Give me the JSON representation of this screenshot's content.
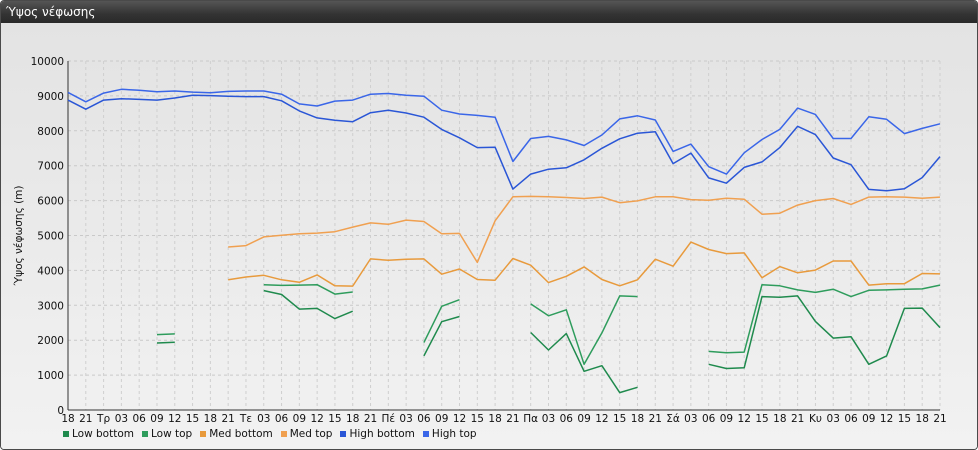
{
  "window": {
    "title": "Ύψος νέφωσης"
  },
  "chart_data": {
    "type": "line",
    "title": "",
    "xlabel": "",
    "ylabel": "Ύψος νέφωσης (m)",
    "ylim": [
      0,
      10000
    ],
    "yticks": [
      0,
      1000,
      2000,
      3000,
      4000,
      5000,
      6000,
      7000,
      8000,
      9000,
      10000
    ],
    "grid": true,
    "legend_position": "bottom-left",
    "categories": [
      "18",
      "21",
      "Τρ",
      "03",
      "06",
      "09",
      "12",
      "15",
      "18",
      "21",
      "Τε",
      "03",
      "06",
      "09",
      "12",
      "15",
      "18",
      "21",
      "Πέ",
      "03",
      "06",
      "09",
      "12",
      "15",
      "18",
      "21",
      "Πα",
      "03",
      "06",
      "09",
      "12",
      "15",
      "18",
      "21",
      "Σά",
      "03",
      "06",
      "09",
      "12",
      "15",
      "18",
      "21",
      "Κυ",
      "03",
      "06",
      "09",
      "12",
      "15",
      "18",
      "21"
    ],
    "series": [
      {
        "name": "Low bottom",
        "color": "#1f8a4d",
        "values": [
          null,
          null,
          null,
          null,
          null,
          1920,
          1940,
          null,
          null,
          null,
          null,
          3420,
          3310,
          2890,
          2910,
          2620,
          2830,
          null,
          null,
          null,
          1550,
          2530,
          2680,
          null,
          null,
          null,
          2220,
          1720,
          2190,
          1110,
          1270,
          500,
          650,
          null,
          null,
          null,
          1310,
          1190,
          1210,
          3250,
          3230,
          3270,
          2540,
          2060,
          2100,
          1310,
          1550,
          2910,
          2920,
          2360
        ]
      },
      {
        "name": "Low top",
        "color": "#2e9c5c",
        "values": [
          null,
          null,
          null,
          null,
          null,
          2160,
          2180,
          null,
          null,
          null,
          null,
          3590,
          3570,
          3580,
          3590,
          3320,
          3380,
          null,
          null,
          null,
          1930,
          2970,
          3160,
          null,
          null,
          null,
          3040,
          2700,
          2870,
          1310,
          2210,
          3270,
          3250,
          null,
          null,
          null,
          1680,
          1640,
          1660,
          3590,
          3560,
          3440,
          3370,
          3460,
          3250,
          3430,
          3440,
          3460,
          3470,
          3580
        ]
      },
      {
        "name": "Med bottom",
        "color": "#e89a3c",
        "values": [
          null,
          null,
          null,
          null,
          null,
          null,
          null,
          null,
          null,
          3730,
          3810,
          3860,
          3730,
          3660,
          3870,
          3560,
          3550,
          4330,
          4290,
          4320,
          4330,
          3890,
          4040,
          3740,
          3720,
          4340,
          4150,
          3650,
          3830,
          4100,
          3740,
          3560,
          3730,
          4320,
          4120,
          4810,
          4600,
          4480,
          4500,
          3790,
          4110,
          3930,
          4010,
          4270,
          4270,
          3580,
          3620,
          3620,
          3910,
          3900
        ]
      },
      {
        "name": "Med top",
        "color": "#f0a050",
        "values": [
          null,
          null,
          null,
          null,
          null,
          null,
          null,
          null,
          null,
          4670,
          4710,
          4960,
          5010,
          5050,
          5070,
          5110,
          5240,
          5360,
          5320,
          5440,
          5400,
          5050,
          5060,
          4230,
          5420,
          6110,
          6120,
          6110,
          6090,
          6060,
          6100,
          5940,
          5990,
          6110,
          6110,
          6030,
          6010,
          6070,
          6040,
          5610,
          5640,
          5870,
          6000,
          6060,
          5890,
          6100,
          6110,
          6100,
          6070,
          6100
        ]
      },
      {
        "name": "High bottom",
        "color": "#2a56d6",
        "values": [
          8880,
          8620,
          8880,
          8920,
          8900,
          8880,
          8940,
          9020,
          9010,
          8990,
          8980,
          8980,
          8860,
          8570,
          8370,
          8300,
          8260,
          8520,
          8590,
          8510,
          8390,
          8040,
          7800,
          7520,
          7530,
          6330,
          6760,
          6900,
          6940,
          7170,
          7500,
          7770,
          7930,
          7970,
          7060,
          7360,
          6650,
          6500,
          6950,
          7110,
          7520,
          8130,
          7890,
          7220,
          7030,
          6320,
          6280,
          6340,
          6660,
          7260
        ]
      },
      {
        "name": "High top",
        "color": "#3a66e8",
        "values": [
          9100,
          8830,
          9080,
          9190,
          9160,
          9120,
          9140,
          9110,
          9090,
          9130,
          9140,
          9140,
          9050,
          8770,
          8710,
          8850,
          8880,
          9050,
          9070,
          9020,
          8990,
          8590,
          8480,
          8440,
          8390,
          7120,
          7780,
          7840,
          7740,
          7580,
          7880,
          8340,
          8430,
          8310,
          7410,
          7620,
          6970,
          6760,
          7370,
          7750,
          8040,
          8650,
          8470,
          7780,
          7780,
          8400,
          8330,
          7920,
          8070,
          8200
        ]
      }
    ]
  }
}
